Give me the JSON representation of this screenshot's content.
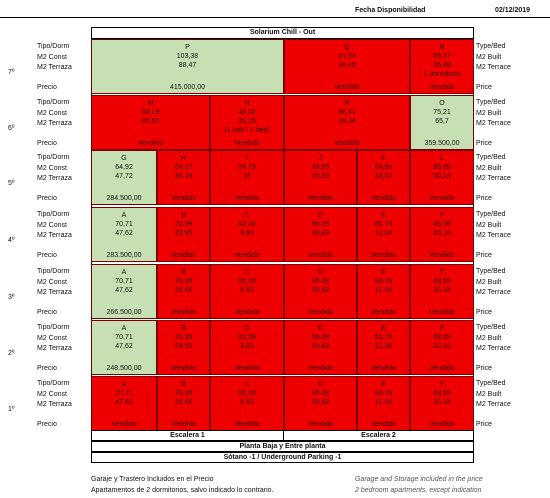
{
  "header": {
    "title": "Fecha Disponibilidad",
    "date": "02/12/2019"
  },
  "building": "Solarium Chill - Out",
  "labels_es": [
    "Tipo/Dorm",
    "M2 Const",
    "M2 Terraza",
    "Precio"
  ],
  "labels_en": [
    "Type/Bed",
    "M2 Built",
    "M2 Terrace",
    "Price"
  ],
  "floors": [
    "7º",
    "6º",
    "5º",
    "4º",
    "3º",
    "2º",
    "1º"
  ],
  "units": [
    {
      "id": "P",
      "built": "103,38",
      "terrace": "88,47",
      "extra": "",
      "price": "415.000,00",
      "status": "green"
    },
    {
      "id": "Q",
      "built": "61,34",
      "terrace": "26,46",
      "extra": "",
      "price": "Vendido",
      "status": "red"
    },
    {
      "id": "R",
      "built": "55,37",
      "terrace": "36,49",
      "extra": "1 dormitorio",
      "price": "Vendido",
      "status": "red"
    },
    {
      "id": "M",
      "built": "89,19",
      "terrace": "88,52",
      "extra": "",
      "price": "Vendido",
      "status": "red"
    },
    {
      "id": "N",
      "built": "45,02",
      "terrace": "28,15",
      "extra": "(1 hab / 1 bed)",
      "price": "Vendido",
      "status": "red"
    },
    {
      "id": "Ñ",
      "built": "58,41",
      "terrace": "29,44",
      "extra": "",
      "price": "Vendido",
      "status": "red"
    },
    {
      "id": "O",
      "built": "75,21",
      "terrace": "65,7",
      "extra": "",
      "price": "359.500,00",
      "status": "green"
    },
    {
      "id": "G",
      "built": "64,92",
      "terrace": "47,72",
      "extra": "",
      "price": "284.500,00",
      "status": "green"
    },
    {
      "id": "H",
      "built": "64,17",
      "terrace": "36,79",
      "extra": "",
      "price": "Vendido",
      "status": "red"
    },
    {
      "id": "I",
      "built": "54,75",
      "terrace": "16",
      "extra": "",
      "price": "Vendido",
      "status": "red"
    },
    {
      "id": "J",
      "built": "69,09",
      "terrace": "30,83",
      "extra": "",
      "price": "Vendido",
      "status": "red"
    },
    {
      "id": "K",
      "built": "54,56",
      "terrace": "18,02",
      "extra": "",
      "price": "Vendido",
      "status": "red"
    },
    {
      "id": "L",
      "built": "69,89",
      "terrace": "20,16",
      "extra": "",
      "price": "Vendido",
      "status": "red"
    },
    {
      "id": "A",
      "built": "70,71",
      "terrace": "47,62",
      "extra": "",
      "price": "283.500,00",
      "status": "green"
    },
    {
      "id": "B",
      "built": "70,39",
      "terrace": "29,55",
      "extra": "",
      "price": "Vendido",
      "status": "red"
    },
    {
      "id": "C",
      "built": "62,09",
      "terrace": "9,60",
      "extra": "",
      "price": "Vendido",
      "status": "red"
    },
    {
      "id": "D",
      "built": "69,09",
      "terrace": "30,83",
      "extra": "",
      "price": "Vendido",
      "status": "red"
    },
    {
      "id": "E",
      "built": "60,79",
      "terrace": "11,24",
      "extra": "",
      "price": "Vendido",
      "status": "red"
    },
    {
      "id": "F",
      "built": "69,89",
      "terrace": "20,16",
      "extra": "",
      "price": "Vendido",
      "status": "red"
    },
    {
      "id": "A",
      "built": "70,71",
      "terrace": "47,62",
      "extra": "",
      "price": "266.500,00",
      "status": "green"
    },
    {
      "id": "B",
      "built": "70,39",
      "terrace": "29,55",
      "extra": "",
      "price": "Vendido",
      "status": "red"
    },
    {
      "id": "C",
      "built": "62,09",
      "terrace": "9,60",
      "extra": "",
      "price": "Vendido",
      "status": "red"
    },
    {
      "id": "D",
      "built": "69,09",
      "terrace": "30,83",
      "extra": "",
      "price": "Vendido",
      "status": "red"
    },
    {
      "id": "E",
      "built": "60,79",
      "terrace": "11,24",
      "extra": "",
      "price": "Vendido",
      "status": "red"
    },
    {
      "id": "F",
      "built": "69,89",
      "terrace": "20,16",
      "extra": "",
      "price": "Vendido",
      "status": "red"
    },
    {
      "id": "A",
      "built": "70,71",
      "terrace": "47,62",
      "extra": "",
      "price": "248.500,00",
      "status": "green"
    },
    {
      "id": "B",
      "built": "70,39",
      "terrace": "29,55",
      "extra": "",
      "price": "Vendido",
      "status": "red"
    },
    {
      "id": "C",
      "built": "62,09",
      "terrace": "9,60",
      "extra": "",
      "price": "Vendido",
      "status": "red"
    },
    {
      "id": "D",
      "built": "69,09",
      "terrace": "30,83",
      "extra": "",
      "price": "Vendido",
      "status": "red"
    },
    {
      "id": "E",
      "built": "60,79",
      "terrace": "11,24",
      "extra": "",
      "price": "Vendido",
      "status": "red"
    },
    {
      "id": "F",
      "built": "69,89",
      "terrace": "20,16",
      "extra": "",
      "price": "Vendido",
      "status": "red"
    },
    {
      "id": "A",
      "built": "70,71",
      "terrace": "47,62",
      "extra": "",
      "price": "Vendido",
      "status": "red"
    },
    {
      "id": "B",
      "built": "70,39",
      "terrace": "29,55",
      "extra": "",
      "price": "Vendido",
      "status": "red"
    },
    {
      "id": "C",
      "built": "62,09",
      "terrace": "9,60",
      "extra": "",
      "price": "Vendido",
      "status": "red"
    },
    {
      "id": "D",
      "built": "69,09",
      "terrace": "30,83",
      "extra": "",
      "price": "Vendido",
      "status": "red"
    },
    {
      "id": "E",
      "built": "60,79",
      "terrace": "11,24",
      "extra": "",
      "price": "Vendido",
      "status": "red"
    },
    {
      "id": "F",
      "built": "69,89",
      "terrace": "20,16",
      "extra": "",
      "price": "Vendido",
      "status": "red"
    }
  ],
  "footer": {
    "stairs_1": "Escalera 1",
    "stairs_2": "Escalera 2",
    "ground": "Planta Baja y Entre planta",
    "basement": "Sótano -1  / Underground Parking -1"
  },
  "notes": {
    "es_1": "Garaje y Trastero Incluidos en el Precio",
    "es_2": "Apartamentos de 2 dormitorios, salvo indicado lo contrario.",
    "en_1": "Garage and Storage included in the price",
    "en_2": "2 bedroom apartments, except indication"
  }
}
